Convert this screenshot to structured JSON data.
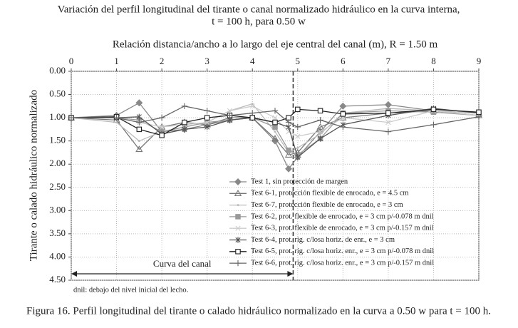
{
  "chart_data": {
    "type": "line",
    "title": "Variación del perfil longitudinal del tirante o canal normalizado hidráulico en la curva interna,",
    "subtitle": "t = 100 h, para 0.50 w",
    "x_label": "Relación distancia/ancho a lo largo del eje central del canal (m), R = 1.50 m",
    "y_label": "Tirante o calado hidráulico normalizado",
    "annotation": "Curva del canal",
    "annotation_range": [
      0,
      4.9
    ],
    "note": "dnil: debajo del nivel inicial del lecho.",
    "caption": "Figura 16. Perfil longitudinal del tirante o calado hidráulico normalizado en la curva a 0.50 w para t = 100 h.",
    "x": [
      0,
      1,
      1.5,
      2,
      2.5,
      3,
      3.5,
      4,
      4.5,
      4.8,
      5,
      5.5,
      6,
      7,
      8,
      9
    ],
    "series": [
      {
        "name": "Test 1, sin protección de margen",
        "color": "#888888",
        "marker": "diamond",
        "values": [
          1.0,
          0.95,
          0.68,
          1.3,
          1.25,
          1.15,
          1.05,
          1.0,
          1.5,
          2.1,
          1.85,
          1.3,
          0.75,
          0.72,
          0.85,
          0.95
        ]
      },
      {
        "name": "Test 6-1, protección flexible de enrocado, e = 4.5 cm",
        "color": "#777777",
        "marker": "triangle",
        "values": [
          1.0,
          1.05,
          1.68,
          1.2,
          1.1,
          1.15,
          1.0,
          1.0,
          1.45,
          1.8,
          1.75,
          1.2,
          1.0,
          0.9,
          0.85,
          0.95
        ]
      },
      {
        "name": "Test 6-7, protección flexible de enrocado, e = 3 cm",
        "color": "#bbbbbb",
        "marker": "none",
        "values": [
          1.0,
          1.1,
          1.5,
          1.3,
          1.2,
          1.1,
          0.85,
          0.7,
          1.3,
          1.75,
          1.65,
          1.35,
          0.9,
          0.8,
          0.85,
          0.9
        ]
      },
      {
        "name": "Test 6-2, prot. flexible de enrocado, e = 3 cm p/-0.078 m dnil",
        "color": "#999999",
        "marker": "square",
        "values": [
          1.0,
          1.0,
          1.05,
          1.3,
          1.2,
          1.1,
          1.05,
          1.0,
          1.2,
          1.7,
          1.8,
          1.45,
          0.9,
          0.85,
          0.88,
          0.95
        ]
      },
      {
        "name": "Test 6-3, prot. flexible de enrocado, e = 3 cm p/-0.157 m dnil",
        "color": "#cccccc",
        "marker": "x",
        "values": [
          1.0,
          1.0,
          1.1,
          1.2,
          1.15,
          1.1,
          0.85,
          0.75,
          1.0,
          1.3,
          1.4,
          1.3,
          1.0,
          1.1,
          0.85,
          0.95
        ]
      },
      {
        "name": "Test 6-4, prot. ríg. c/losa horiz. de enr., e = 3 cm",
        "color": "#555555",
        "marker": "asterisk",
        "values": [
          1.0,
          1.0,
          0.98,
          1.35,
          1.25,
          1.2,
          1.05,
          1.0,
          1.1,
          1.2,
          1.85,
          1.45,
          1.15,
          0.95,
          0.8,
          0.9
        ]
      },
      {
        "name": "Test 6-5,  prot. ríg. c/losa horiz. enr., e = 3 cm  p/-0.078 m dnil",
        "color": "#222222",
        "marker": "opensquare",
        "values": [
          1.0,
          0.98,
          1.25,
          1.38,
          1.1,
          1.0,
          0.95,
          1.0,
          1.1,
          1.0,
          0.82,
          0.85,
          0.92,
          0.9,
          0.82,
          0.88
        ]
      },
      {
        "name": "Test 6-6,  prot. ríg. c/losa horiz. enr., e = 3 cm p/-0.157 m dnil",
        "color": "#666666",
        "marker": "plus",
        "values": [
          1.0,
          1.0,
          1.1,
          1.0,
          0.75,
          0.85,
          0.95,
          0.9,
          0.85,
          1.1,
          1.2,
          1.05,
          1.2,
          1.3,
          1.15,
          0.98
        ]
      }
    ],
    "xlim": [
      0,
      9
    ],
    "xticks": [
      0,
      1,
      2,
      3,
      4,
      5,
      6,
      7,
      8,
      9
    ],
    "ylim": [
      4.5,
      0
    ],
    "yticks": [
      {
        "value": 0,
        "label": "0.00"
      },
      {
        "value": 0.5,
        "label": "0.50"
      },
      {
        "value": 1,
        "label": "1.00"
      },
      {
        "value": 1.5,
        "label": "1.50"
      },
      {
        "value": 2,
        "label": "2.00"
      },
      {
        "value": 2.5,
        "label": "2.50"
      },
      {
        "value": 3,
        "label": "3.00"
      },
      {
        "value": 3.5,
        "label": "3.50"
      },
      {
        "value": 4,
        "label": "4.00"
      },
      {
        "value": 4.5,
        "label": "4.50"
      }
    ],
    "grid": true
  }
}
